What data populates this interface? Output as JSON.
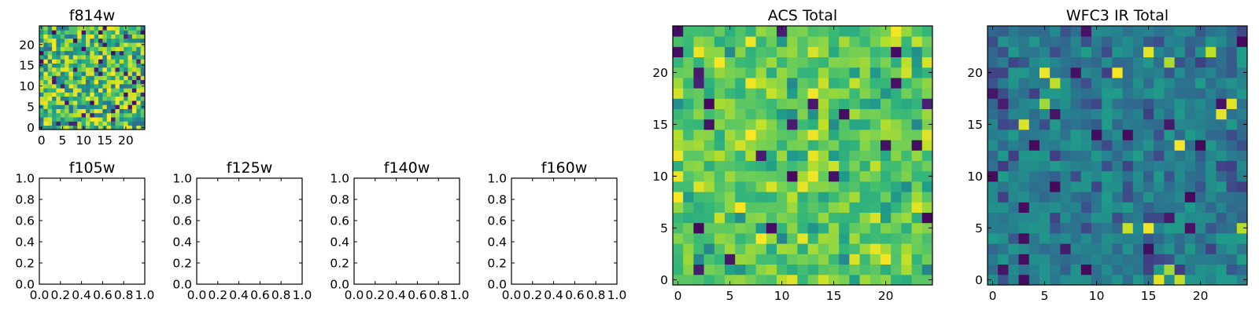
{
  "chart_data": [
    {
      "type": "heatmap",
      "title": "f814w",
      "nx": 25,
      "ny": 25,
      "xlim": [
        -0.5,
        24.5
      ],
      "ylim": [
        -0.5,
        24.5
      ],
      "xticks": [
        0,
        5,
        10,
        15,
        20
      ],
      "yticks": [
        0,
        5,
        10,
        15,
        20
      ],
      "colormap": "viridis",
      "value_range": [
        0,
        1
      ],
      "origin": "lower"
    },
    {
      "type": "scatter",
      "title": "f105w",
      "xlim": [
        0.0,
        1.0
      ],
      "ylim": [
        0.0,
        1.0
      ],
      "xticks": [
        "0.0",
        "0.2",
        "0.4",
        "0.6",
        "0.8",
        "1.0"
      ],
      "yticks": [
        "0.0",
        "0.2",
        "0.4",
        "0.6",
        "0.8",
        "1.0"
      ],
      "series": []
    },
    {
      "type": "scatter",
      "title": "f125w",
      "xlim": [
        0.0,
        1.0
      ],
      "ylim": [
        0.0,
        1.0
      ],
      "xticks": [
        "0.0",
        "0.2",
        "0.4",
        "0.6",
        "0.8",
        "1.0"
      ],
      "yticks": [
        "0.0",
        "0.2",
        "0.4",
        "0.6",
        "0.8",
        "1.0"
      ],
      "series": []
    },
    {
      "type": "scatter",
      "title": "f140w",
      "xlim": [
        0.0,
        1.0
      ],
      "ylim": [
        0.0,
        1.0
      ],
      "xticks": [
        "0.0",
        "0.2",
        "0.4",
        "0.6",
        "0.8",
        "1.0"
      ],
      "yticks": [
        "0.0",
        "0.2",
        "0.4",
        "0.6",
        "0.8",
        "1.0"
      ],
      "series": []
    },
    {
      "type": "scatter",
      "title": "f160w",
      "xlim": [
        0.0,
        1.0
      ],
      "ylim": [
        0.0,
        1.0
      ],
      "xticks": [
        "0.0",
        "0.2",
        "0.4",
        "0.6",
        "0.8",
        "1.0"
      ],
      "yticks": [
        "0.0",
        "0.2",
        "0.4",
        "0.6",
        "0.8",
        "1.0"
      ],
      "series": []
    },
    {
      "type": "heatmap",
      "title": "ACS Total",
      "nx": 25,
      "ny": 25,
      "xlim": [
        -0.5,
        24.5
      ],
      "ylim": [
        -0.5,
        24.5
      ],
      "xticks": [
        0,
        5,
        10,
        15,
        20
      ],
      "yticks": [
        0,
        5,
        10,
        15,
        20
      ],
      "colormap": "viridis",
      "value_range": [
        0,
        1
      ],
      "origin": "lower",
      "distribution": "mostly high values (green-yellow), sparse dark pixels"
    },
    {
      "type": "heatmap",
      "title": "WFC3 IR Total",
      "nx": 25,
      "ny": 25,
      "xlim": [
        -0.5,
        24.5
      ],
      "ylim": [
        -0.5,
        24.5
      ],
      "xticks": [
        0,
        5,
        10,
        15,
        20
      ],
      "yticks": [
        0,
        5,
        10,
        15,
        20
      ],
      "colormap": "viridis",
      "value_range": [
        0,
        1
      ],
      "origin": "lower",
      "distribution": "mostly mid values (teal-green), sparse yellow and dark pixels"
    }
  ]
}
